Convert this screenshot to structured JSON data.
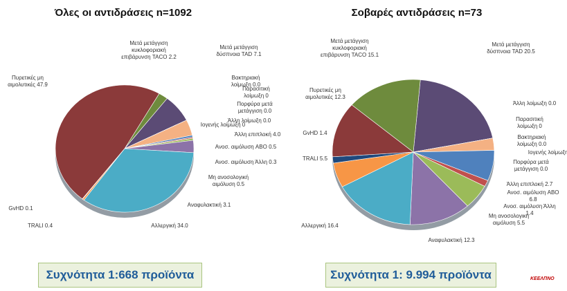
{
  "chart_data": [
    {
      "type": "pie",
      "title": "Όλες οι αντιδράσεις n=1092",
      "categories": [
        "Μετά μετάγγιση κυκλοφοριακή επιβάρυνση TACO",
        "Μετά μετάγγιση δύσπνοια TAD",
        "Βακτηριακή λοίμωξη",
        "Παρασιτική λοίμωξη",
        "Πορφύρα μετά μετάγγιση",
        "Άλλη λοίμωξη",
        "Ιογενής λοίμωξη",
        "Άλλη επιπλοκή",
        "Ανοσ. αιμόλυση ABO",
        "Ανοσ. αιμόλυση Άλλη",
        "Μη ανοσολογική αιμόλυση",
        "Αναφυλακτική",
        "Αλλεργική",
        "TRALI",
        "GvHD",
        "Πυρετικές μη αιμολυτικές"
      ],
      "values": [
        2.2,
        7.1,
        0,
        0,
        0,
        0,
        0,
        4.0,
        0.5,
        0.3,
        0.5,
        3.1,
        34.0,
        0.4,
        0.1,
        47.9
      ],
      "value_labels": [
        "2.2",
        "7.1",
        "0.0",
        "0",
        "0.0",
        "0.0",
        "0",
        "4.0",
        "0.5",
        "0.3",
        "0.5",
        "3.1",
        "34.0",
        "0.4",
        "0.1",
        "47.9"
      ],
      "colors": [
        "#6e8b3d",
        "#5b4b75",
        "#a6a6a6",
        "#a6a6a6",
        "#a6a6a6",
        "#a6a6a6",
        "#a6a6a6",
        "#f4b183",
        "#4f81bd",
        "#c0504d",
        "#9bbb59",
        "#8c73a8",
        "#4bacc6",
        "#f79646",
        "#1f497d",
        "#8b3a3a"
      ],
      "annotation": "Συχνότητα 1:668 προϊόντα"
    },
    {
      "type": "pie",
      "title": "Σοβαρές  αντιδράσεις n=73",
      "categories": [
        "Μετά μετάγγιση δύσπνοια TAD",
        "Άλλη λοίμωξη",
        "Παρασιτική λοίμωξη",
        "Βακτηριακή λοίμωξη",
        "Ιογενής λοίμωξη",
        "Πορφύρα μετά μετάγγιση",
        "Άλλη επιπλοκή",
        "Ανοσ. αιμόλυση ABO",
        "Ανοσ. αιμόλυση Άλλη",
        "Μη ανοσολογική αιμόλυση",
        "Αναφυλακτική",
        "Αλλεργική",
        "TRALI",
        "GvHD",
        "Πυρετικές μη αιμολυτικές",
        "Μετά μετάγγιση κυκλοφοριακή επιβάρυνση TACO"
      ],
      "values": [
        20.5,
        0,
        0,
        0,
        0,
        0,
        2.7,
        6.8,
        1.4,
        5.5,
        12.3,
        16.4,
        5.5,
        1.4,
        12.3,
        15.1
      ],
      "value_labels": [
        "20.5",
        "0.0",
        "0",
        "0.0",
        "0",
        "0.0",
        "2.7",
        "6.8",
        "1.4",
        "5.5",
        "12.3",
        "16.4",
        "5.5",
        "1.4",
        "12.3",
        "15.1"
      ],
      "colors": [
        "#5b4b75",
        "#a6a6a6",
        "#a6a6a6",
        "#a6a6a6",
        "#a6a6a6",
        "#a6a6a6",
        "#f4b183",
        "#4f81bd",
        "#c0504d",
        "#9bbb59",
        "#8c73a8",
        "#4bacc6",
        "#f79646",
        "#1f497d",
        "#8b3a3a",
        "#6e8b3d"
      ],
      "annotation": "Συχνότητα 1: 9.994 προϊόντα"
    }
  ],
  "logo": "ΚΕΕΛΠΝΟ"
}
